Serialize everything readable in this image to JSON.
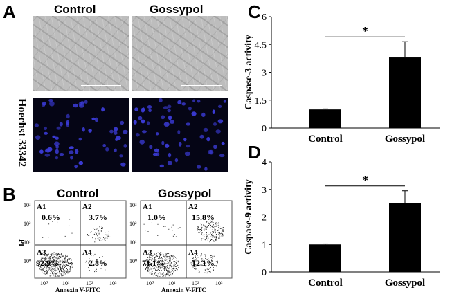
{
  "panel_a": {
    "letter": "A",
    "headers": [
      "Control",
      "Gossypol"
    ],
    "row_label": "Hoechst 33342"
  },
  "panel_b": {
    "letter": "B",
    "plots": [
      {
        "title": "Control",
        "quadrants": {
          "A1": "0.6%",
          "A2": "3.7%",
          "A3": "92.9%",
          "A4": "2.8%"
        }
      },
      {
        "title": "Gossypol",
        "quadrants": {
          "A1": "1.0%",
          "A2": "15.8%",
          "A3": "71.1%",
          "A4": "12.1%"
        }
      }
    ],
    "quadrant_names": [
      "A1",
      "A2",
      "A3",
      "A4"
    ],
    "x_axis_label": "Annexin V-FITC",
    "y_axis_label": "PI",
    "tick_labels": [
      "10⁰",
      "10¹",
      "10²",
      "10³"
    ]
  },
  "chart_data": [
    {
      "panel": "C",
      "type": "bar",
      "categories": [
        "Control",
        "Gossypol"
      ],
      "values": [
        1.0,
        3.8
      ],
      "error": [
        0.03,
        0.85
      ],
      "ylabel": "Caspase-3 activity",
      "ylim": [
        0,
        6
      ],
      "yticks": [
        "0",
        "1.5",
        "3",
        "4.5",
        "6"
      ],
      "significance": "*"
    },
    {
      "panel": "D",
      "type": "bar",
      "categories": [
        "Control",
        "Gossypol"
      ],
      "values": [
        1.0,
        2.5
      ],
      "error": [
        0.02,
        0.45
      ],
      "ylabel": "Caspase-9 activity",
      "ylim": [
        0,
        4
      ],
      "yticks": [
        "0",
        "1",
        "2",
        "3",
        "4"
      ],
      "significance": "*"
    }
  ],
  "colors": {
    "bar": "#000000",
    "nuclei": "#3b3bd6",
    "background_dark": "#050515"
  }
}
